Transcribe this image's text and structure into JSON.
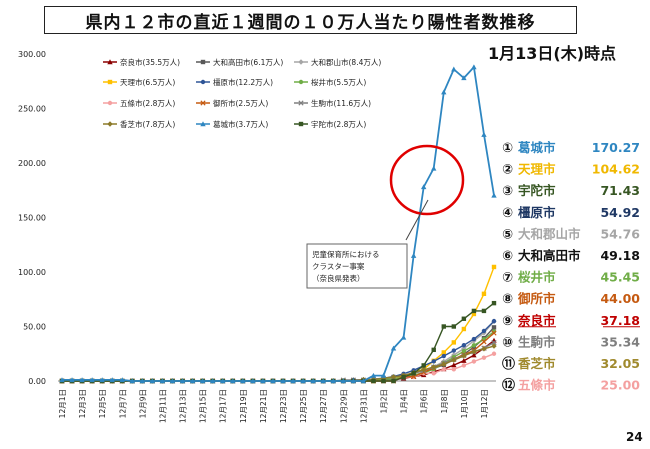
{
  "title": "県内１２市の直近１週間の１０万人当たり陽性者数推移",
  "as_of": "1月13日(木)時点",
  "page_number": "24",
  "annotation": {
    "lines": [
      "児童保育所における",
      "クラスター事案",
      "（奈良県発表）"
    ]
  },
  "chart_data": {
    "type": "line",
    "ylim": [
      0,
      300
    ],
    "yticks": [
      "0.00",
      "50.00",
      "100.00",
      "150.00",
      "200.00",
      "250.00",
      "300.00"
    ],
    "x": [
      "12月1日",
      "12月2日",
      "12月3日",
      "12月4日",
      "12月5日",
      "12月6日",
      "12月7日",
      "12月8日",
      "12月9日",
      "12月10日",
      "12月11日",
      "12月12日",
      "12月13日",
      "12月14日",
      "12月15日",
      "12月16日",
      "12月17日",
      "12月18日",
      "12月19日",
      "12月20日",
      "12月21日",
      "12月22日",
      "12月23日",
      "12月24日",
      "12月25日",
      "12月26日",
      "12月27日",
      "12月28日",
      "12月29日",
      "12月30日",
      "12月31日",
      "1月1日",
      "1月2日",
      "1月3日",
      "1月4日",
      "1月5日",
      "1月6日",
      "1月7日",
      "1月8日",
      "1月9日",
      "1月10日",
      "1月11日",
      "1月12日",
      "1月13日"
    ],
    "xticks": [
      "12月1日",
      "12月3日",
      "12月5日",
      "12月7日",
      "12月9日",
      "12月11日",
      "12月13日",
      "12月15日",
      "12月17日",
      "12月19日",
      "12月21日",
      "12月23日",
      "12月25日",
      "12月27日",
      "12月29日",
      "12月31日",
      "1月2日",
      "1月4日",
      "1月6日",
      "1月8日",
      "1月10日",
      "1月12日"
    ],
    "series": [
      {
        "name": "奈良市(35.5万人)",
        "color": "#8B0000",
        "marker": "triangle",
        "values": [
          0,
          0,
          0,
          0,
          0,
          0,
          0,
          0,
          0,
          0,
          0,
          0,
          0,
          0,
          0,
          0,
          0,
          0,
          0,
          0,
          0,
          0,
          0,
          0,
          0,
          0,
          0,
          0.3,
          0.3,
          0.6,
          0.6,
          0.8,
          0.8,
          1.1,
          2.5,
          3.9,
          5.6,
          8.5,
          11.0,
          14.6,
          18.6,
          23.7,
          30.1,
          37.18
        ]
      },
      {
        "name": "大和高田市(6.1万人)",
        "color": "#595959",
        "marker": "square",
        "values": [
          0,
          0,
          0,
          0,
          0,
          0,
          0,
          0,
          0,
          0,
          0,
          0,
          0,
          0,
          0,
          0,
          0,
          0,
          0,
          0,
          0,
          0,
          0,
          0,
          0,
          0,
          0,
          0,
          0,
          0,
          0,
          0,
          0,
          1.6,
          3.3,
          4.9,
          8.2,
          11.5,
          14.8,
          19.7,
          24.6,
          31.1,
          39.3,
          49.18
        ]
      },
      {
        "name": "大和郡山市(8.4万人)",
        "color": "#A6A6A6",
        "marker": "diamond",
        "values": [
          0,
          0,
          0,
          0,
          0,
          0,
          0,
          0,
          0,
          0,
          0,
          0,
          0,
          0,
          0,
          0,
          0,
          0,
          0,
          0,
          0,
          0,
          0,
          0,
          0,
          0,
          0,
          0,
          0,
          1.2,
          1.2,
          1.2,
          2.4,
          3.6,
          4.8,
          7.1,
          9.5,
          13.1,
          17.9,
          23.8,
          29.8,
          36.9,
          44.1,
          54.76
        ]
      },
      {
        "name": "天理市(6.5万人)",
        "color": "#FFC000",
        "marker": "square",
        "values": [
          0,
          0,
          0,
          0,
          0,
          0,
          0,
          0,
          0,
          0,
          0,
          0,
          0,
          0,
          0,
          0,
          0,
          0,
          0,
          0,
          0,
          0,
          0,
          0,
          0,
          0,
          0,
          0,
          0,
          0,
          0,
          0,
          1.5,
          3.1,
          4.6,
          7.7,
          10.8,
          18.5,
          26.2,
          35.4,
          47.7,
          61.5,
          80.0,
          104.62
        ]
      },
      {
        "name": "橿原市(12.2万人)",
        "color": "#2F5597",
        "marker": "circle",
        "values": [
          0,
          0,
          0,
          0,
          0,
          0,
          0,
          0,
          0,
          0,
          0,
          0,
          0,
          0,
          0,
          0,
          0,
          0,
          0,
          0,
          0,
          0,
          0,
          0,
          0,
          0,
          0,
          0,
          0,
          0.8,
          0.8,
          1.6,
          2.5,
          4.1,
          6.6,
          9.8,
          13.9,
          18.0,
          22.9,
          27.9,
          32.8,
          38.5,
          45.9,
          54.92
        ]
      },
      {
        "name": "桜井市(5.5万人)",
        "color": "#70AD47",
        "marker": "circle",
        "values": [
          0,
          0,
          0,
          0,
          0,
          0,
          0,
          0,
          0,
          0,
          0,
          0,
          0,
          0,
          0,
          0,
          0,
          0,
          0,
          0,
          0,
          0,
          0,
          0,
          0,
          0,
          0,
          0,
          0,
          0,
          0,
          0,
          1.8,
          1.8,
          3.6,
          5.5,
          7.3,
          10.9,
          16.4,
          21.8,
          27.3,
          32.7,
          38.2,
          45.45
        ]
      },
      {
        "name": "五條市(2.8万人)",
        "color": "#F4A0A0",
        "marker": "circle",
        "values": [
          0,
          0,
          0,
          0,
          0,
          0,
          0,
          0,
          0,
          0,
          0,
          0,
          0,
          0,
          0,
          0,
          0,
          0,
          0,
          0,
          0,
          0,
          0,
          0,
          0,
          0,
          0,
          0,
          0,
          0,
          0,
          0,
          0,
          0,
          3.6,
          3.6,
          7.1,
          7.1,
          10.7,
          10.7,
          14.3,
          17.9,
          21.4,
          25.0
        ]
      },
      {
        "name": "御所市(2.5万人)",
        "color": "#C55A11",
        "marker": "x",
        "values": [
          0,
          0,
          0,
          0,
          0,
          0,
          0,
          0,
          0,
          0,
          0,
          0,
          0,
          0,
          0,
          0,
          0,
          0,
          0,
          0,
          0,
          0,
          0,
          0,
          0,
          0,
          0,
          0,
          0,
          0,
          0,
          0,
          0,
          0,
          4.0,
          4.0,
          8.0,
          12.0,
          16.0,
          20.0,
          24.0,
          28.0,
          36.0,
          44.0
        ]
      },
      {
        "name": "生駒市(11.6万人)",
        "color": "#7F7F7F",
        "marker": "x",
        "values": [
          0,
          0,
          0,
          0,
          0,
          0,
          0,
          0,
          0,
          0,
          0,
          0,
          0,
          0,
          0,
          0,
          0,
          0,
          0,
          0,
          0,
          0,
          0,
          0,
          0,
          0,
          0,
          0,
          0.9,
          0.9,
          0.9,
          1.7,
          2.6,
          3.4,
          5.2,
          6.9,
          9.5,
          12.9,
          16.4,
          19.8,
          23.3,
          26.7,
          30.2,
          35.34
        ]
      },
      {
        "name": "香芝市(7.8万人)",
        "color": "#8C7A29",
        "marker": "diamond",
        "values": [
          0,
          0,
          0,
          0,
          0,
          0,
          0,
          0,
          0,
          0,
          0,
          0,
          0,
          0,
          0,
          0,
          0,
          0,
          0,
          0,
          0,
          0,
          0,
          0,
          0,
          0,
          0,
          0,
          0,
          0,
          1.3,
          1.3,
          2.6,
          3.8,
          5.1,
          7.7,
          10.3,
          12.8,
          15.4,
          19.2,
          23.1,
          26.9,
          29.5,
          32.05
        ]
      },
      {
        "name": "葛城市(3.7万人)",
        "color": "#2E86C1",
        "marker": "triangle",
        "values": [
          1,
          1,
          1,
          1,
          1,
          1,
          1,
          0,
          0,
          0,
          0,
          0,
          0,
          0,
          0,
          0,
          0,
          0,
          0,
          0,
          0,
          0,
          0,
          0,
          0,
          0,
          0,
          0,
          0,
          0,
          0,
          5,
          5,
          30,
          40,
          115,
          178,
          195,
          265,
          286,
          278,
          288,
          226,
          170.27
        ]
      },
      {
        "name": "宇陀市(2.8万人)",
        "color": "#375623",
        "marker": "square",
        "values": [
          0,
          0,
          0,
          0,
          0,
          0,
          0,
          0,
          0,
          0,
          0,
          0,
          0,
          0,
          0,
          0,
          0,
          0,
          0,
          0,
          0,
          0,
          0,
          0,
          0,
          0,
          0,
          0,
          0,
          0,
          0,
          0,
          0,
          0,
          3.6,
          7.1,
          14.3,
          28.6,
          50.0,
          50.0,
          57.1,
          64.3,
          64.3,
          71.43
        ]
      }
    ],
    "legend_position": "top-left",
    "grid": false
  },
  "ranking": [
    {
      "rank": "①",
      "city": "葛城市",
      "value": "170.27",
      "color": "#2E86C1"
    },
    {
      "rank": "②",
      "city": "天理市",
      "value": "104.62",
      "color": "#F0B800"
    },
    {
      "rank": "③",
      "city": "宇陀市",
      "value": "71.43",
      "color": "#375623"
    },
    {
      "rank": "④",
      "city": "橿原市",
      "value": "54.92",
      "color": "#1F3864"
    },
    {
      "rank": "⑤",
      "city": "大和郡山市",
      "value": "54.76",
      "color": "#A6A6A6"
    },
    {
      "rank": "⑥",
      "city": "大和高田市",
      "value": "49.18",
      "color": "#111111"
    },
    {
      "rank": "⑦",
      "city": "桜井市",
      "value": "45.45",
      "color": "#70AD47"
    },
    {
      "rank": "⑧",
      "city": "御所市",
      "value": "44.00",
      "color": "#C55A11"
    },
    {
      "rank": "⑨",
      "city": "奈良市",
      "value": "37.18",
      "color": "#C00000"
    },
    {
      "rank": "⑩",
      "city": "生駒市",
      "value": "35.34",
      "color": "#7F7F7F"
    },
    {
      "rank": "⑪",
      "city": "香芝市",
      "value": "32.05",
      "color": "#A08A2E"
    },
    {
      "rank": "⑫",
      "city": "五條市",
      "value": "25.00",
      "color": "#F4A0A0"
    }
  ]
}
